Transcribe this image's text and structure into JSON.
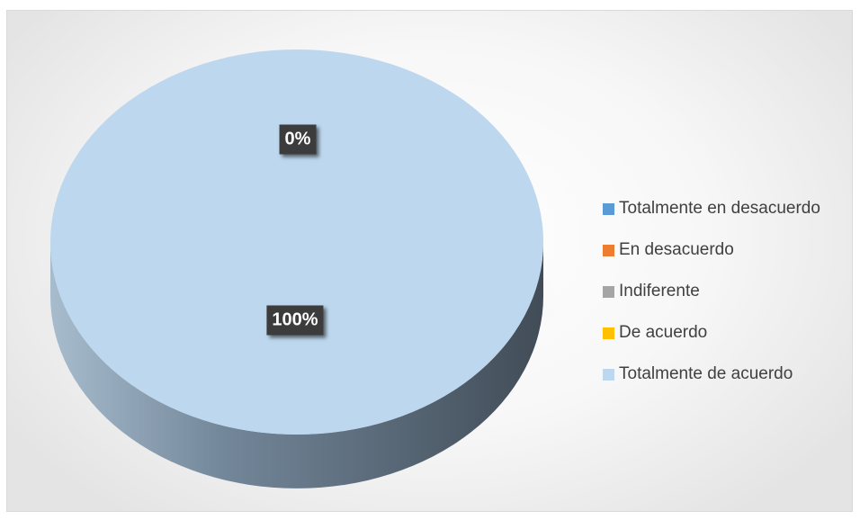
{
  "chart_data": {
    "type": "pie",
    "title": "",
    "categories": [
      "Totalmente en desacuerdo",
      "En desacuerdo",
      "Indiferente",
      "De acuerdo",
      "Totalmente de acuerdo"
    ],
    "values": [
      0,
      0,
      0,
      0,
      100
    ],
    "colors": [
      "#5b9bd5",
      "#ed7d31",
      "#a5a5a5",
      "#ffc000",
      "#bdd7ee"
    ],
    "data_labels": [
      "0%",
      "0%",
      "0%",
      "0%",
      "100%"
    ],
    "legend_position": "right",
    "style": "3d"
  },
  "labels": {
    "top_label": "0%",
    "main_label": "100%"
  }
}
